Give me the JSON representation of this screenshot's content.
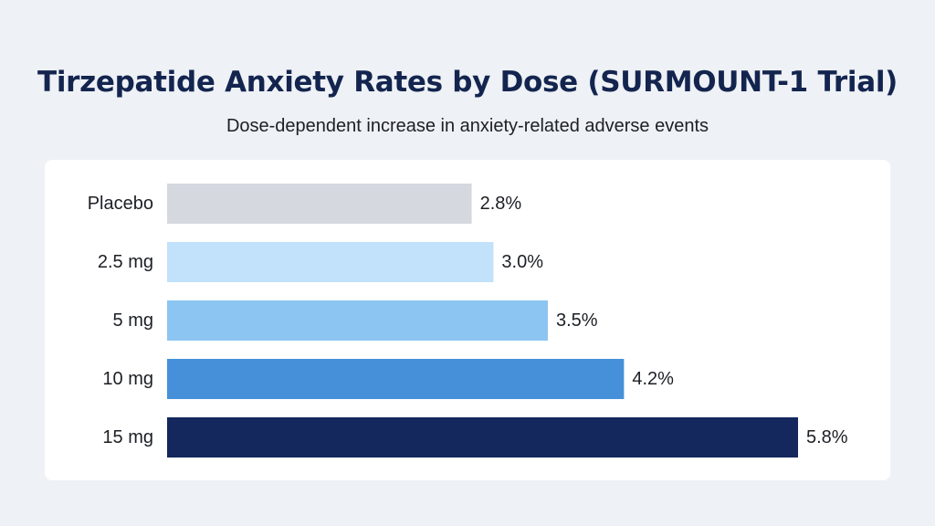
{
  "chart_data": {
    "type": "bar",
    "orientation": "horizontal",
    "title": "Tirzepatide Anxiety Rates by Dose (SURMOUNT-1 Trial)",
    "subtitle": "Dose-dependent increase in anxiety-related adverse events",
    "categories": [
      "Placebo",
      "2.5 mg",
      "5 mg",
      "10 mg",
      "15 mg"
    ],
    "values": [
      2.8,
      3.0,
      3.5,
      4.2,
      5.8
    ],
    "value_labels": [
      "2.8%",
      "3.0%",
      "3.5%",
      "4.2%",
      "5.8%"
    ],
    "colors": [
      "#d5d8df",
      "#c2e1fb",
      "#8cc5f1",
      "#4590d9",
      "#14285d"
    ],
    "xlim": [
      0,
      5.8
    ],
    "grid": false,
    "legend": "none"
  }
}
